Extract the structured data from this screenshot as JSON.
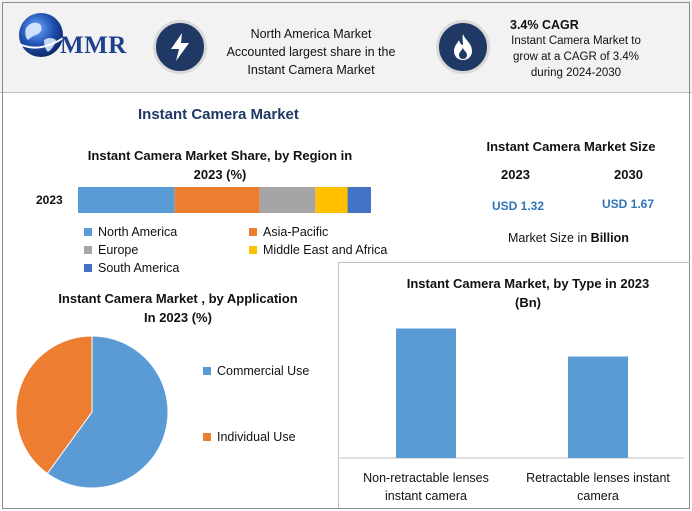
{
  "header": {
    "logo_text": "MMR",
    "highlight_1": {
      "icon": "lightning-bolt-icon",
      "lines": [
        "North America Market",
        "Accounted largest share in the",
        "Instant Camera Market"
      ]
    },
    "highlight_2": {
      "icon": "flame-icon",
      "title": "3.4% CAGR",
      "lines": [
        "Instant Camera Market to",
        "grow at a CAGR of 3.4%",
        "during 2024-2030"
      ]
    }
  },
  "main_title": "Instant Camera Market",
  "market_size": {
    "title": "Instant Camera Market Size",
    "years": [
      {
        "year": "2023",
        "value": "USD 1.32"
      },
      {
        "year": "2030",
        "value": "USD 1.67"
      }
    ],
    "note_prefix": "Market Size in ",
    "note_bold": "Billion"
  },
  "colors": {
    "north_america": "#5b9bd5",
    "asia_pacific": "#ed7d31",
    "europe": "#a5a5a5",
    "middle_east": "#ffc000",
    "south_america": "#4472c4",
    "commercial": "#5b9bd5",
    "individual": "#ed7d31",
    "type_bar": "#5b9bd5",
    "header_circle": "#1f3864"
  },
  "chart_data": [
    {
      "type": "bar",
      "orientation": "horizontal-stacked",
      "title": "Instant Camera Market Share, by Region in 2023 (%)",
      "title_lines": [
        "Instant Camera Market Share, by Region in",
        "2023 (%)"
      ],
      "categories": [
        "2023"
      ],
      "xlim": [
        0,
        100
      ],
      "legend": "bottom",
      "series": [
        {
          "name": "North America",
          "values": [
            33
          ]
        },
        {
          "name": "Asia-Pacific",
          "values": [
            29
          ]
        },
        {
          "name": "Europe",
          "values": [
            19
          ]
        },
        {
          "name": "Middle East and Africa",
          "values": [
            11
          ]
        },
        {
          "name": "South America",
          "values": [
            8
          ]
        }
      ]
    },
    {
      "type": "pie",
      "title": "Instant Camera Market , by Application In 2023 (%)",
      "title_lines": [
        "Instant Camera Market , by Application",
        "In 2023 (%)"
      ],
      "legend": "right",
      "categories": [
        "Commercial Use",
        "Individual Use"
      ],
      "values": [
        60,
        40
      ]
    },
    {
      "type": "bar",
      "title": "Instant Camera Market, by Type in 2023 (Bn)",
      "title_lines": [
        "Instant Camera Market, by Type in 2023",
        "(Bn)"
      ],
      "categories": [
        "Non-retractable lenses instant camera",
        "Retractable lenses instant camera"
      ],
      "category_lines": [
        [
          "Non-retractable lenses",
          "instant camera"
        ],
        [
          "Retractable lenses instant",
          "camera"
        ]
      ],
      "values": [
        0.74,
        0.58
      ],
      "ylim": [
        0,
        0.8
      ]
    }
  ]
}
